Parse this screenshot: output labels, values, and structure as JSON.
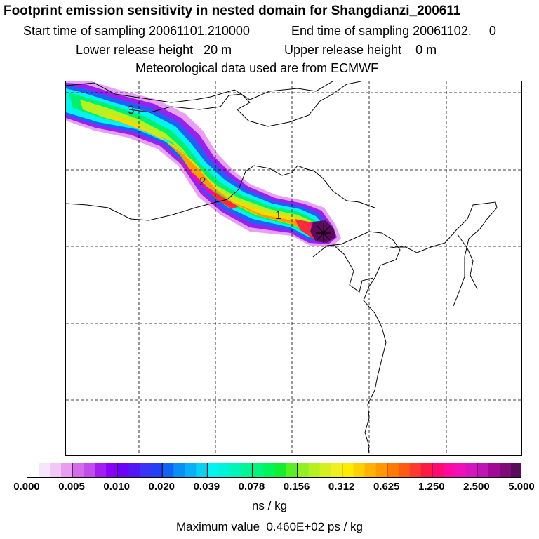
{
  "header": {
    "title": "Footprint emission sensitivity in nested domain for Shangdianzi_200611",
    "start_label": "Start time of sampling 20061101.210000",
    "end_label": "End time of sampling 20061102.     0",
    "lower_label": "Lower release height   20 m",
    "upper_label": "Upper release height    0 m",
    "met_label": "Meteorological data used are from ECMWF"
  },
  "map": {
    "station_marker": "receptor-cross-icon",
    "day_labels": [
      "1",
      "2",
      "3"
    ]
  },
  "legend": {
    "ticks": [
      "0.000",
      "0.005",
      "0.010",
      "0.020",
      "0.039",
      "0.078",
      "0.156",
      "0.312",
      "0.625",
      "1.250",
      "2.500",
      "5.000"
    ],
    "unit": "ns / kg",
    "colors": [
      "#ffffff",
      "#f7e6fb",
      "#f0c8f6",
      "#e89cf2",
      "#d46be9",
      "#c24dea",
      "#a51cf0",
      "#8a00f5",
      "#6d00f5",
      "#5515f5",
      "#3a35f5",
      "#2240f5",
      "#1065f5",
      "#0a90f5",
      "#0ab0f5",
      "#0ad0f2",
      "#00f5f0",
      "#00f5d8",
      "#00f5b8",
      "#00f595",
      "#00f57a",
      "#00f558",
      "#10f030",
      "#58f020",
      "#90f020",
      "#b5f020",
      "#d5f020",
      "#eff020",
      "#ffeb00",
      "#ffd000",
      "#ffb200",
      "#ff9800",
      "#ff7a00",
      "#ff5a10",
      "#ff3a30",
      "#ff1a45",
      "#ff0a70",
      "#ff0aa0",
      "#ee10b8",
      "#d515c0",
      "#c015b5",
      "#a00a95",
      "#800a78",
      "#5c0a5c"
    ],
    "max_label": "Maximum value  0.460E+02 ps / kg"
  },
  "colors": {
    "peak": "#5c0a5c",
    "magenta": "#ff00b0",
    "red": "#ff2a3a",
    "orange": "#ff9a00",
    "yellow": "#ffd800",
    "greenyellow": "#b8f020",
    "green": "#00f070",
    "cyan": "#00f5f0",
    "blue": "#2060f5",
    "violet": "#9a20f0",
    "lightviolet": "#e8a0f5"
  }
}
